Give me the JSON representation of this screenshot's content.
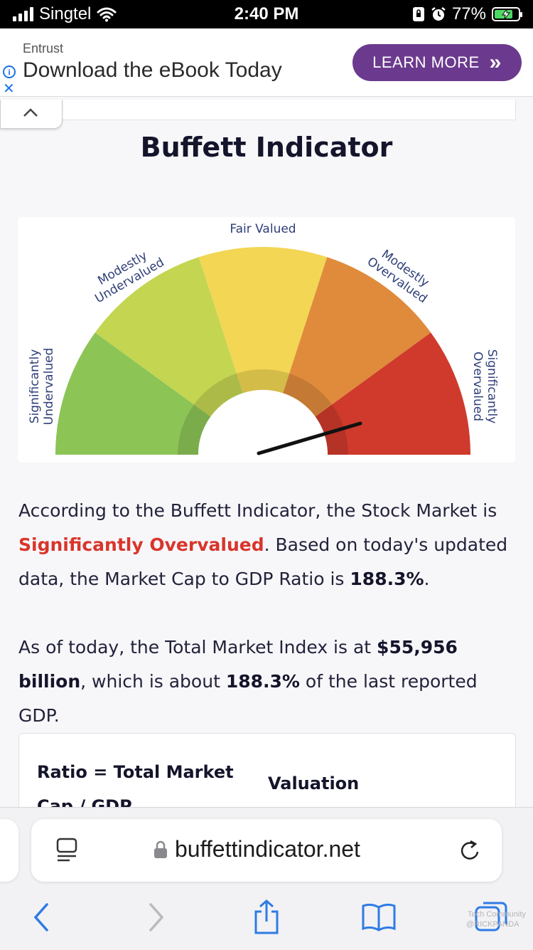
{
  "status_bar": {
    "carrier": "Singtel",
    "time": "2:40 PM",
    "battery_percent": "77%",
    "battery_level": 0.77,
    "icons": [
      "signal-icon",
      "wifi-icon",
      "portrait-lock-icon",
      "alarm-icon",
      "battery-charging-icon"
    ]
  },
  "ad": {
    "sponsor": "Entrust",
    "headline": "Download the eBook Today",
    "cta_label": "LEARN MORE",
    "cta_arrow": "»",
    "cta_color": "#6b3a8e"
  },
  "page": {
    "title": "Buffett Indicator"
  },
  "gauge": {
    "labels": {
      "significantly_undervalued": [
        "Significantly",
        "Undervalued"
      ],
      "modestly_undervalued": [
        "Modestly",
        "Undervalued"
      ],
      "fair_valued": "Fair Valued",
      "modestly_overvalued": [
        "Modestly",
        "Overvalued"
      ],
      "significantly_overvalued": [
        "Significantly",
        "Overvalued"
      ]
    },
    "colors": {
      "significantly_undervalued": "#8cc456",
      "modestly_undervalued": "#c4d551",
      "fair_valued": "#f2d654",
      "modestly_overvalued": "#e08b3c",
      "significantly_overvalued": "#cf3a2c",
      "label_text": "#2e3e78"
    },
    "needle_zone": "Significantly Overvalued"
  },
  "content": {
    "p1_a": "According to the Buffett Indicator, the Stock Market is",
    "status": "Significantly Overvalued",
    "p1_b": ". Based on today's updated data, the Market Cap to GDP Ratio is",
    "ratio": "188.3%",
    "p1_c": ".",
    "p2_a": "As of today, the Total Market Index is at",
    "market_index": "$55,956 billion",
    "p2_b": ", which is about",
    "ratio2": "188.3%",
    "p2_c": "of the last reported GDP."
  },
  "table": {
    "headers": [
      "Ratio = Total Market Cap / GDP",
      "Valuation"
    ]
  },
  "browser": {
    "url": "buffettindicator.net",
    "toolbar": [
      "back-icon",
      "forward-icon",
      "share-icon",
      "bookmarks-icon",
      "tabs-icon"
    ]
  },
  "watermark": [
    "Tech Community",
    "@RICKPANDA"
  ]
}
